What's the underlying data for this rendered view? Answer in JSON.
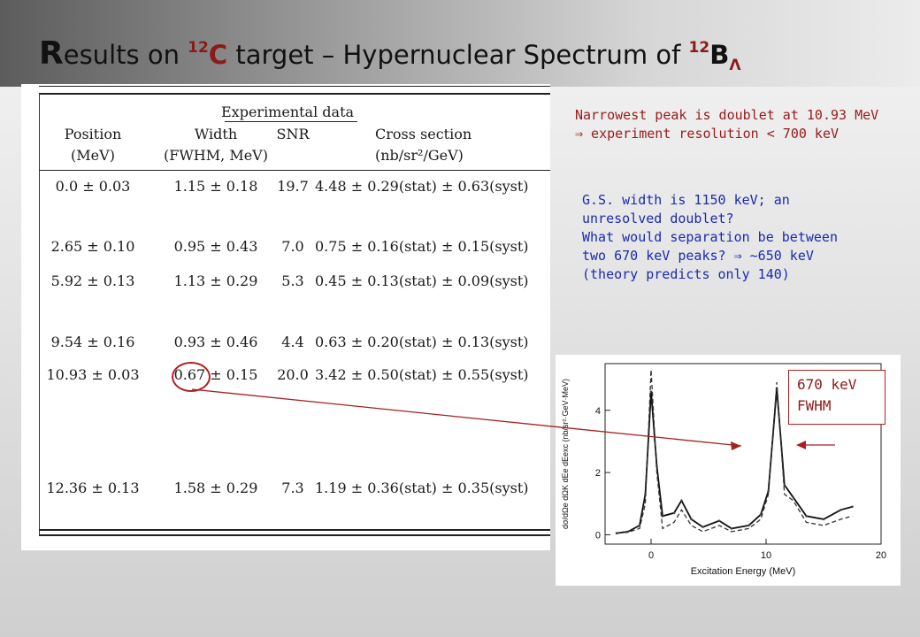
{
  "slide": {
    "title_r": "R",
    "title_part1": "esults on ",
    "title_sup1": "12",
    "title_c": "C",
    "title_part2": " target – Hypernuclear Spectrum of ",
    "title_sup2": "12",
    "title_b": "B",
    "title_lambda": "Λ"
  },
  "table": {
    "group_title": "Experimental data",
    "headers": {
      "position": [
        "Position",
        "(MeV)"
      ],
      "width": [
        "Width",
        "(FWHM, MeV)"
      ],
      "snr": [
        "SNR",
        ""
      ],
      "cross_section": [
        "Cross section",
        "(nb/sr²/GeV)"
      ]
    },
    "rows": [
      {
        "position": "0.0 ± 0.03",
        "width": "1.15 ± 0.18",
        "snr": "19.7",
        "cross_section": "4.48 ± 0.29(stat) ± 0.63(syst)"
      },
      {
        "position": "2.65 ± 0.10",
        "width": "0.95 ± 0.43",
        "snr": "7.0",
        "cross_section": "0.75 ± 0.16(stat) ± 0.15(syst)"
      },
      {
        "position": "5.92 ± 0.13",
        "width": "1.13 ± 0.29",
        "snr": "5.3",
        "cross_section": "0.45 ± 0.13(stat) ± 0.09(syst)"
      },
      {
        "position": "9.54 ± 0.16",
        "width": "0.93 ± 0.46",
        "snr": "4.4",
        "cross_section": "0.63 ± 0.20(stat) ± 0.13(syst)"
      },
      {
        "position": "10.93 ± 0.03",
        "width": "0.67 ± 0.15",
        "snr": "20.0",
        "cross_section": "3.42 ± 0.50(stat) ± 0.55(syst)"
      },
      {
        "position": "12.36 ± 0.13",
        "width": "1.58 ± 0.29",
        "snr": "7.3",
        "cross_section": "1.19 ± 0.36(stat) ± 0.35(syst)"
      }
    ]
  },
  "notes": {
    "red": [
      "Narrowest peak is doublet at 10.93 MeV",
      "⇒  experiment resolution < 700 keV"
    ],
    "blue": [
      "G.S. width is 1150 keV; an",
      "unresolved doublet?",
      "What would separation be between",
      "two 670 keV peaks?  ⇒  ~650 keV",
      "(theory predicts only 140)"
    ]
  },
  "annotation": {
    "line1": "670 keV",
    "line2": "FWHM"
  },
  "chart_data": {
    "type": "line",
    "xlabel": "Excitation Energy (MeV)",
    "ylabel": "dσ/dΩe dΩK dEe dEexc  (nb/sr²·GeV·MeV)",
    "xlim": [
      -4,
      20
    ],
    "ylim": [
      -0.3,
      5.5
    ],
    "xticks": [
      0,
      10,
      20
    ],
    "yticks": [
      0,
      2,
      4
    ],
    "x": [
      -3,
      -2,
      -1,
      -0.5,
      0,
      0.5,
      1,
      2,
      2.65,
      3.5,
      4.5,
      5.92,
      7,
      8.5,
      9.54,
      10.2,
      10.93,
      11.6,
      12.36,
      13.5,
      15,
      16.5,
      17.5
    ],
    "series": [
      {
        "values": [
          0.05,
          0.1,
          0.3,
          1.3,
          4.6,
          2.2,
          0.6,
          0.7,
          1.1,
          0.5,
          0.25,
          0.45,
          0.2,
          0.3,
          0.65,
          1.4,
          4.7,
          1.6,
          1.2,
          0.6,
          0.5,
          0.8,
          0.9
        ]
      },
      {
        "values": [
          0.05,
          0.08,
          0.2,
          1.0,
          5.3,
          2.0,
          0.2,
          0.4,
          0.8,
          0.3,
          0.1,
          0.3,
          0.1,
          0.2,
          0.5,
          1.3,
          4.9,
          1.3,
          1.1,
          0.4,
          0.3,
          0.5,
          0.6
        ]
      }
    ]
  }
}
